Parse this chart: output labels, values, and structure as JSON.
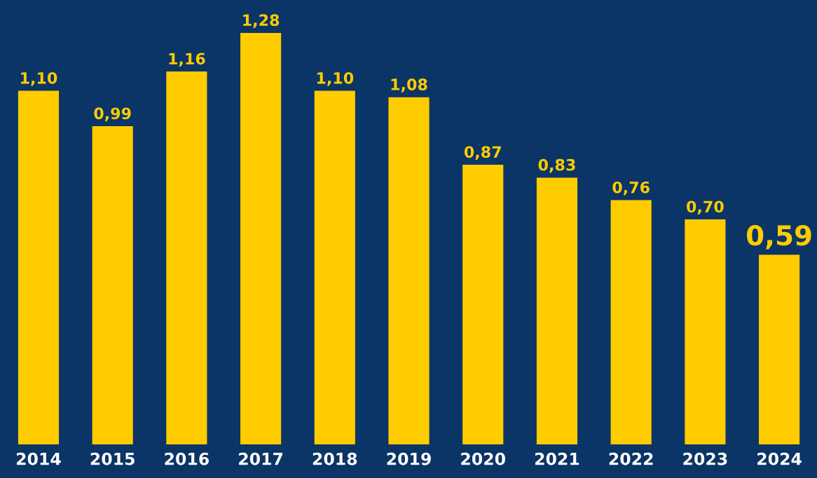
{
  "chart_data": {
    "type": "bar",
    "categories": [
      "2014",
      "2015",
      "2016",
      "2017",
      "2018",
      "2019",
      "2020",
      "2021",
      "2022",
      "2023",
      "2024"
    ],
    "values": [
      1.1,
      0.99,
      1.16,
      1.28,
      1.1,
      1.08,
      0.87,
      0.83,
      0.76,
      0.7,
      0.59
    ],
    "value_labels": [
      "1,10",
      "0,99",
      "1,16",
      "1,28",
      "1,10",
      "1,08",
      "0,87",
      "0,83",
      "0,76",
      "0,70",
      "0,59"
    ],
    "color": "#ffcc00",
    "grid": false,
    "legend": false
  }
}
